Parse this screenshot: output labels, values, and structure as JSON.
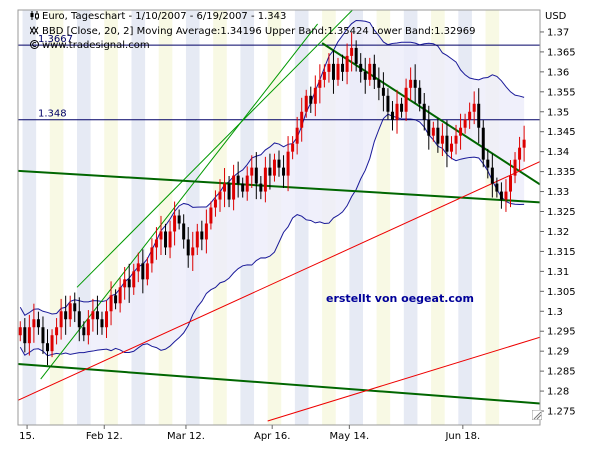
{
  "header": {
    "line1": "Euro, Tageschart - 1/10/2007 - 6/19/2007 - 1.343",
    "line2": "BBD [Close, 20, 2] Moving Average:1.34196 Upper Band:1.35424 Lower Band:1.32969",
    "line3": "www.tradesignal.com",
    "currency": "USD"
  },
  "watermark": "erstellt von oegeat.com",
  "icons": [
    "candlestick-icon",
    "bands-icon",
    "copyright-icon",
    "resize-handle-icon"
  ],
  "colors": {
    "bull": "#dd0000",
    "bear": "#000000",
    "band": "#1a1a99",
    "band_fill": "#ececfa",
    "channel_green": "#009900",
    "trend_green": "#006600",
    "trend_red": "#ee0000",
    "hline": "#000066",
    "stripe_blue": "#e6eaf4",
    "stripe_yellow": "#f8f9e4",
    "watermark": "#000099"
  },
  "chart_data": {
    "type": "candlestick",
    "title": "Euro, Tageschart - 1/10/2007 - 6/19/2007 - 1.343",
    "x_tick_labels": [
      "15.",
      "Feb 12.",
      "Mar 12.",
      "Apr 16.",
      "May 14.",
      "Jun 18."
    ],
    "y_ticks": [
      1.275,
      1.28,
      1.285,
      1.29,
      1.295,
      1.3,
      1.305,
      1.31,
      1.315,
      1.32,
      1.325,
      1.33,
      1.335,
      1.34,
      1.345,
      1.35,
      1.355,
      1.36,
      1.365,
      1.37
    ],
    "ylim": [
      1.2715,
      1.3755
    ],
    "xlim": [
      0,
      115
    ],
    "horizontal_lines": [
      {
        "label": "1.3667",
        "value": 1.3667
      },
      {
        "label": "1.348",
        "value": 1.348
      }
    ],
    "close_series": [
      1.296,
      1.292,
      1.296,
      1.298,
      1.296,
      1.292,
      1.29,
      1.294,
      1.296,
      1.3,
      1.298,
      1.302,
      1.3,
      1.296,
      1.294,
      1.298,
      1.3,
      1.298,
      1.296,
      1.3,
      1.304,
      1.302,
      1.306,
      1.308,
      1.306,
      1.31,
      1.312,
      1.308,
      1.312,
      1.316,
      1.318,
      1.32,
      1.316,
      1.32,
      1.324,
      1.322,
      1.318,
      1.314,
      1.316,
      1.32,
      1.318,
      1.322,
      1.326,
      1.328,
      1.33,
      1.332,
      1.328,
      1.334,
      1.332,
      1.33,
      1.334,
      1.336,
      1.332,
      1.33,
      1.336,
      1.334,
      1.338,
      1.336,
      1.334,
      1.34,
      1.342,
      1.346,
      1.35,
      1.354,
      1.352,
      1.356,
      1.358,
      1.36,
      1.362,
      1.358,
      1.362,
      1.36,
      1.364,
      1.366,
      1.362,
      1.36,
      1.358,
      1.362,
      1.358,
      1.356,
      1.354,
      1.35,
      1.348,
      1.352,
      1.35,
      1.356,
      1.358,
      1.356,
      1.352,
      1.348,
      1.344,
      1.346,
      1.342,
      1.344,
      1.34,
      1.342,
      1.344,
      1.346,
      1.348,
      1.35,
      1.352,
      1.346,
      1.338,
      1.336,
      1.332,
      1.33,
      1.328,
      1.33,
      1.334,
      1.338,
      1.341,
      1.343
    ],
    "bollinger": {
      "period": 20,
      "multiplier": 2,
      "moving_average": 1.34196,
      "upper_band": 1.35424,
      "lower_band": 1.32969
    },
    "trendlines": [
      {
        "color": "channel_green",
        "width": 1,
        "p1": [
          5,
          1.283
        ],
        "p2": [
          66,
          1.372
        ]
      },
      {
        "color": "channel_green",
        "width": 1,
        "p1": [
          13,
          1.306
        ],
        "p2": [
          75,
          1.377
        ]
      },
      {
        "color": "trend_green",
        "width": 2,
        "p1": [
          0,
          1.3352
        ],
        "p2": [
          115,
          1.3273
        ]
      },
      {
        "color": "trend_green",
        "width": 2,
        "p1": [
          0,
          1.2868
        ],
        "p2": [
          115,
          1.2769
        ]
      },
      {
        "color": "trend_green",
        "width": 2,
        "p1": [
          67,
          1.3672
        ],
        "p2": [
          115,
          1.3318
        ]
      },
      {
        "color": "trend_red",
        "width": 1,
        "p1": [
          0,
          1.2777
        ],
        "p2": [
          115,
          1.3375
        ]
      },
      {
        "color": "trend_red",
        "width": 1,
        "p1": [
          55,
          1.2725
        ],
        "p2": [
          115,
          1.2935
        ]
      }
    ],
    "stripes": [
      {
        "from": 1,
        "to": 4,
        "color": "stripe_blue"
      },
      {
        "from": 7,
        "to": 10,
        "color": "stripe_yellow"
      },
      {
        "from": 13,
        "to": 16,
        "color": "stripe_blue"
      },
      {
        "from": 19,
        "to": 22,
        "color": "stripe_yellow"
      },
      {
        "from": 25,
        "to": 28,
        "color": "stripe_blue"
      },
      {
        "from": 31,
        "to": 34,
        "color": "stripe_yellow"
      },
      {
        "from": 37,
        "to": 40,
        "color": "stripe_blue"
      },
      {
        "from": 43,
        "to": 46,
        "color": "stripe_yellow"
      },
      {
        "from": 49,
        "to": 52,
        "color": "stripe_blue"
      },
      {
        "from": 55,
        "to": 58,
        "color": "stripe_yellow"
      },
      {
        "from": 61,
        "to": 64,
        "color": "stripe_blue"
      },
      {
        "from": 67,
        "to": 70,
        "color": "stripe_yellow"
      },
      {
        "from": 73,
        "to": 76,
        "color": "stripe_blue"
      },
      {
        "from": 79,
        "to": 82,
        "color": "stripe_yellow"
      },
      {
        "from": 85,
        "to": 88,
        "color": "stripe_blue"
      },
      {
        "from": 91,
        "to": 94,
        "color": "stripe_yellow"
      },
      {
        "from": 97,
        "to": 100,
        "color": "stripe_blue"
      },
      {
        "from": 103,
        "to": 106,
        "color": "stripe_yellow"
      }
    ],
    "x_tick_positions": [
      2,
      19,
      37,
      56,
      73,
      98
    ],
    "grid": false
  }
}
